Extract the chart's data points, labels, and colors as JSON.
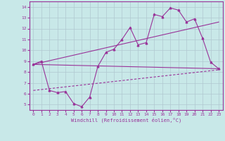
{
  "title": "",
  "xlabel": "Windchill (Refroidissement éolien,°C)",
  "background_color": "#c8e8e8",
  "grid_color": "#b0c8d0",
  "line_color": "#993399",
  "xticks": [
    0,
    1,
    2,
    3,
    4,
    5,
    6,
    7,
    8,
    9,
    10,
    11,
    12,
    13,
    14,
    15,
    16,
    17,
    18,
    19,
    20,
    21,
    22,
    23
  ],
  "yticks": [
    5,
    6,
    7,
    8,
    9,
    10,
    11,
    12,
    13,
    14
  ],
  "xlim": [
    -0.5,
    23.5
  ],
  "ylim": [
    4.5,
    14.5
  ],
  "series1_x": [
    0,
    1,
    2,
    3,
    4,
    5,
    6,
    7,
    8,
    9,
    10,
    11,
    12,
    13,
    14,
    15,
    16,
    17,
    18,
    19,
    20,
    21,
    22,
    23
  ],
  "series1_y": [
    8.7,
    9.0,
    6.3,
    6.1,
    6.2,
    5.1,
    4.8,
    5.7,
    8.5,
    9.8,
    10.1,
    11.0,
    12.1,
    10.5,
    10.7,
    13.3,
    13.1,
    13.9,
    13.7,
    12.6,
    12.9,
    11.1,
    8.9,
    8.3
  ],
  "series2_x": [
    0,
    23
  ],
  "series2_y": [
    8.7,
    8.3
  ],
  "series3_x": [
    0,
    23
  ],
  "series3_y": [
    6.3,
    8.2
  ],
  "series4_x": [
    0,
    23
  ],
  "series4_y": [
    8.7,
    12.6
  ],
  "tick_fontsize": 4.5,
  "xlabel_fontsize": 5.0
}
